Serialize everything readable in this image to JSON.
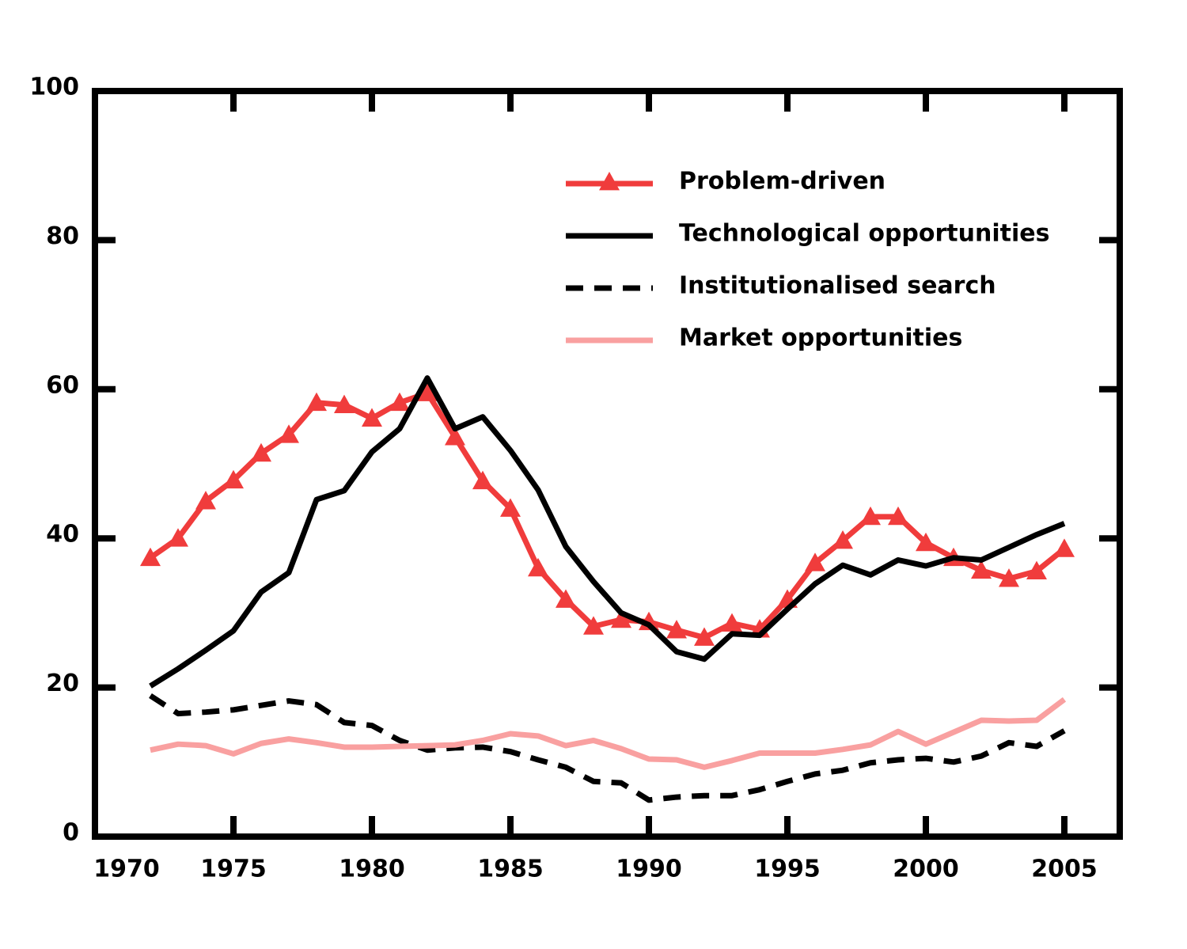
{
  "chart_data": {
    "type": "line",
    "x": [
      1972,
      1973,
      1974,
      1975,
      1976,
      1977,
      1978,
      1979,
      1980,
      1981,
      1982,
      1983,
      1984,
      1985,
      1986,
      1987,
      1988,
      1989,
      1990,
      1991,
      1992,
      1993,
      1994,
      1995,
      1996,
      1997,
      1998,
      1999,
      2000,
      2001,
      2002,
      2003,
      2004,
      2005
    ],
    "series": [
      {
        "name": "Problem-driven",
        "color": "#f03c3c",
        "marker": "triangle",
        "linestyle": "solid",
        "values": [
          37.4,
          40,
          45,
          47.8,
          51.4,
          53.9,
          58.2,
          57.9,
          56.1,
          58.2,
          59.5,
          53.6,
          47.7,
          44,
          36,
          31.8,
          28.2,
          29.1,
          28.8,
          27.7,
          26.7,
          28.6,
          27.8,
          31.8,
          36.7,
          39.7,
          42.9,
          42.9,
          39.4,
          37.4,
          35.7,
          34.6,
          35.6,
          38.6
        ]
      },
      {
        "name": "Technological opportunities",
        "color": "#000000",
        "linestyle": "solid",
        "values": [
          20.2,
          22.5,
          25,
          27.6,
          32.8,
          35.4,
          45.2,
          46.4,
          51.6,
          54.7,
          61.5,
          54.7,
          56.3,
          51.8,
          46.5,
          38.9,
          34.2,
          30,
          28.4,
          24.8,
          23.8,
          27.2,
          27,
          30.5,
          33.9,
          36.4,
          35.1,
          37.1,
          36.3,
          37.4,
          37.1,
          38.8,
          40.5,
          42
        ]
      },
      {
        "name": "Institutionalised search",
        "color": "#000000",
        "linestyle": "dashed",
        "values": [
          18.9,
          16.5,
          16.7,
          17,
          17.6,
          18.2,
          17.7,
          15.3,
          14.9,
          12.9,
          11.6,
          11.9,
          12,
          11.4,
          10.3,
          9.3,
          7.4,
          7.2,
          4.9,
          5.3,
          5.5,
          5.5,
          6.3,
          7.4,
          8.4,
          8.9,
          9.9,
          10.3,
          10.5,
          10,
          10.8,
          12.6,
          12.1,
          14.2
        ]
      },
      {
        "name": "Market opportunities",
        "color": "#f9a0a0",
        "linestyle": "solid",
        "values": [
          11.6,
          12.4,
          12.2,
          11.1,
          12.5,
          13.1,
          12.6,
          12,
          12,
          12.1,
          12.2,
          12.3,
          12.9,
          13.8,
          13.5,
          12.2,
          12.9,
          11.8,
          10.4,
          10.3,
          9.3,
          10.2,
          11.2,
          11.2,
          11.2,
          11.7,
          12.3,
          14.1,
          12.4,
          14,
          15.6,
          15.5,
          15.6,
          18.4
        ]
      }
    ],
    "xlim": [
      1970,
      2007
    ],
    "xticks": [
      1970,
      1975,
      1980,
      1985,
      1990,
      1995,
      2000,
      2005
    ],
    "ylim": [
      0,
      100
    ],
    "yticks": [
      0,
      20,
      40,
      60,
      80,
      100
    ],
    "legend": "upper right"
  }
}
